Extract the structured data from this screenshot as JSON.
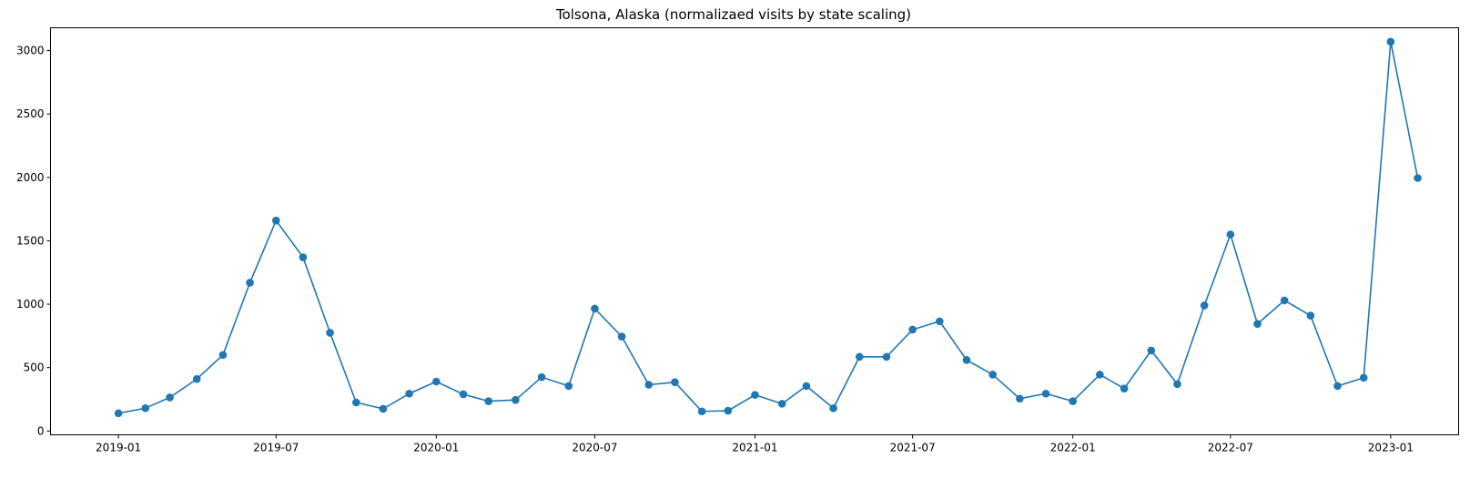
{
  "chart_data": {
    "type": "line",
    "title": "Tolsona, Alaska (normalizaed visits by state scaling)",
    "xlabel": "",
    "ylabel": "",
    "ylim": [
      -30,
      3180
    ],
    "xlim": [
      "2018-10-15",
      "2023-03-20"
    ],
    "grid": false,
    "marker": "circle",
    "color": "#1f77b4",
    "x_ticks": [
      "2019-01",
      "2019-07",
      "2020-01",
      "2020-07",
      "2021-01",
      "2021-07",
      "2022-01",
      "2022-07",
      "2023-01"
    ],
    "y_ticks": [
      0,
      500,
      1000,
      1500,
      2000,
      2500,
      3000
    ],
    "series": [
      {
        "x": [
          "2019-01",
          "2019-02",
          "2019-03",
          "2019-04",
          "2019-05",
          "2019-06",
          "2019-07",
          "2019-08",
          "2019-09",
          "2019-10",
          "2019-11",
          "2019-12",
          "2020-01",
          "2020-02",
          "2020-03",
          "2020-04",
          "2020-05",
          "2020-06",
          "2020-07",
          "2020-08",
          "2020-09",
          "2020-10",
          "2020-11",
          "2020-12",
          "2021-01",
          "2021-02",
          "2021-03",
          "2021-04",
          "2021-05",
          "2021-06",
          "2021-07",
          "2021-08",
          "2021-09",
          "2021-10",
          "2021-11",
          "2021-12",
          "2022-01",
          "2022-02",
          "2022-03",
          "2022-04",
          "2022-05",
          "2022-06",
          "2022-07",
          "2022-08",
          "2022-09",
          "2022-10",
          "2022-11",
          "2022-12",
          "2023-01",
          "2023-02"
        ],
        "values": [
          140,
          180,
          265,
          410,
          600,
          1170,
          1660,
          1370,
          775,
          225,
          175,
          295,
          390,
          290,
          235,
          245,
          425,
          355,
          965,
          745,
          365,
          385,
          155,
          160,
          285,
          215,
          355,
          180,
          585,
          585,
          800,
          865,
          560,
          445,
          255,
          295,
          235,
          445,
          335,
          635,
          370,
          990,
          1550,
          845,
          1030,
          910,
          355,
          420,
          3070,
          1995
        ]
      }
    ]
  }
}
